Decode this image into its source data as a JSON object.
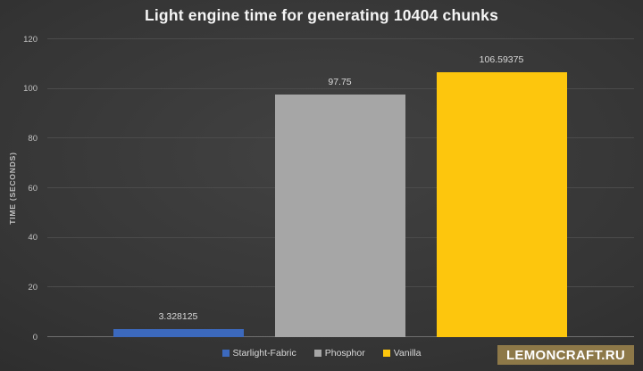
{
  "watermark": {
    "text": "LEMONCRAFT.RU"
  },
  "colors": {
    "background_center": "#424242",
    "background_mid": "#343434",
    "background_edge": "#242424",
    "gridline": "#4b4b4b",
    "axis_line": "#6e6e6e",
    "tick_text": "#c0c0c0",
    "label_text": "#d9d9d9",
    "title_text": "#f5f5f5",
    "watermark_bg": "#8d7848",
    "watermark_text": "#ffffff"
  },
  "chart_data": {
    "type": "bar",
    "title": "Light engine time for generating 10404 chunks",
    "categories": [
      "Starlight-Fabric",
      "Phosphor",
      "Vanilla"
    ],
    "values": [
      3.328125,
      97.75,
      106.59375
    ],
    "value_labels": [
      "3.328125",
      "97.75",
      "106.59375"
    ],
    "series_colors": [
      "#3c69bd",
      "#a6a6a6",
      "#fdc60d"
    ],
    "xlabel": "",
    "ylabel": "TIME (SECONDS)",
    "ylim": [
      0,
      120
    ],
    "yticks": [
      0,
      20,
      40,
      60,
      80,
      100,
      120
    ],
    "grid": true,
    "legend_position": "bottom"
  }
}
